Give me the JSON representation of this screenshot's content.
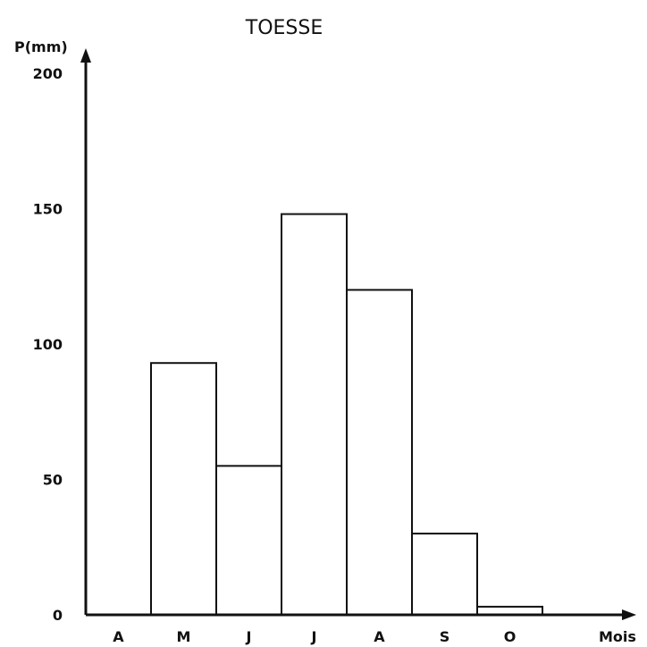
{
  "chart_data": {
    "type": "bar",
    "title": "TOESSE",
    "ylabel": "P(mm)",
    "xlabel": "Mois",
    "categories": [
      "A",
      "M",
      "J",
      "J",
      "A",
      "S",
      "O"
    ],
    "values": [
      0,
      93,
      55,
      148,
      120,
      30,
      3
    ],
    "yticks": [
      "0",
      "50",
      "100",
      "150",
      "200"
    ],
    "ylim": [
      0,
      200
    ],
    "grid": false,
    "legend": "none"
  }
}
